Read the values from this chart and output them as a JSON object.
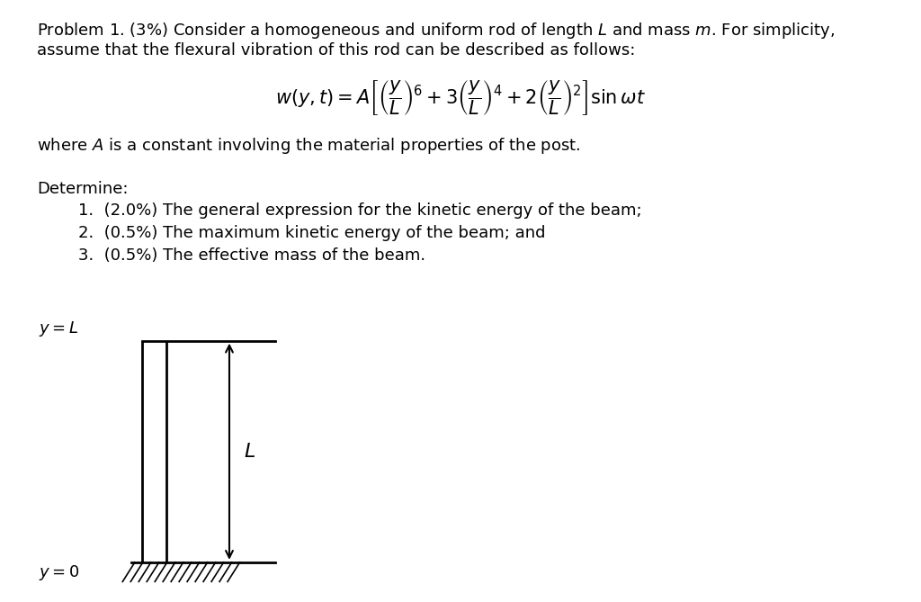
{
  "bg_color": "#ffffff",
  "line1": "Problem 1. (3%) Consider a homogeneous and uniform rod of length $L$ and mass $m$. For simplicity,",
  "line2": "assume that the flexural vibration of this rod can be described as follows:",
  "formula": "$w(y,t) = A\\left[\\left(\\dfrac{y}{L}\\right)^{6} + 3\\left(\\dfrac{y}{L}\\right)^{4} + 2\\left(\\dfrac{y}{L}\\right)^{2}\\right]\\sin\\omega t$",
  "where_text": "where $A$ is a constant involving the material properties of the post.",
  "determine_text": "Determine:",
  "item1": "1.  (2.0%) The general expression for the kinetic energy of the beam;",
  "item2": "2.  (0.5%) The maximum kinetic energy of the beam; and",
  "item3": "3.  (0.5%) The effective mass of the beam.",
  "yL_label": "$y = L$",
  "y0_label": "$y = 0$",
  "L_label": "$L$",
  "fontsize_body": 13,
  "fontsize_formula": 15,
  "fontsize_diagram": 13
}
